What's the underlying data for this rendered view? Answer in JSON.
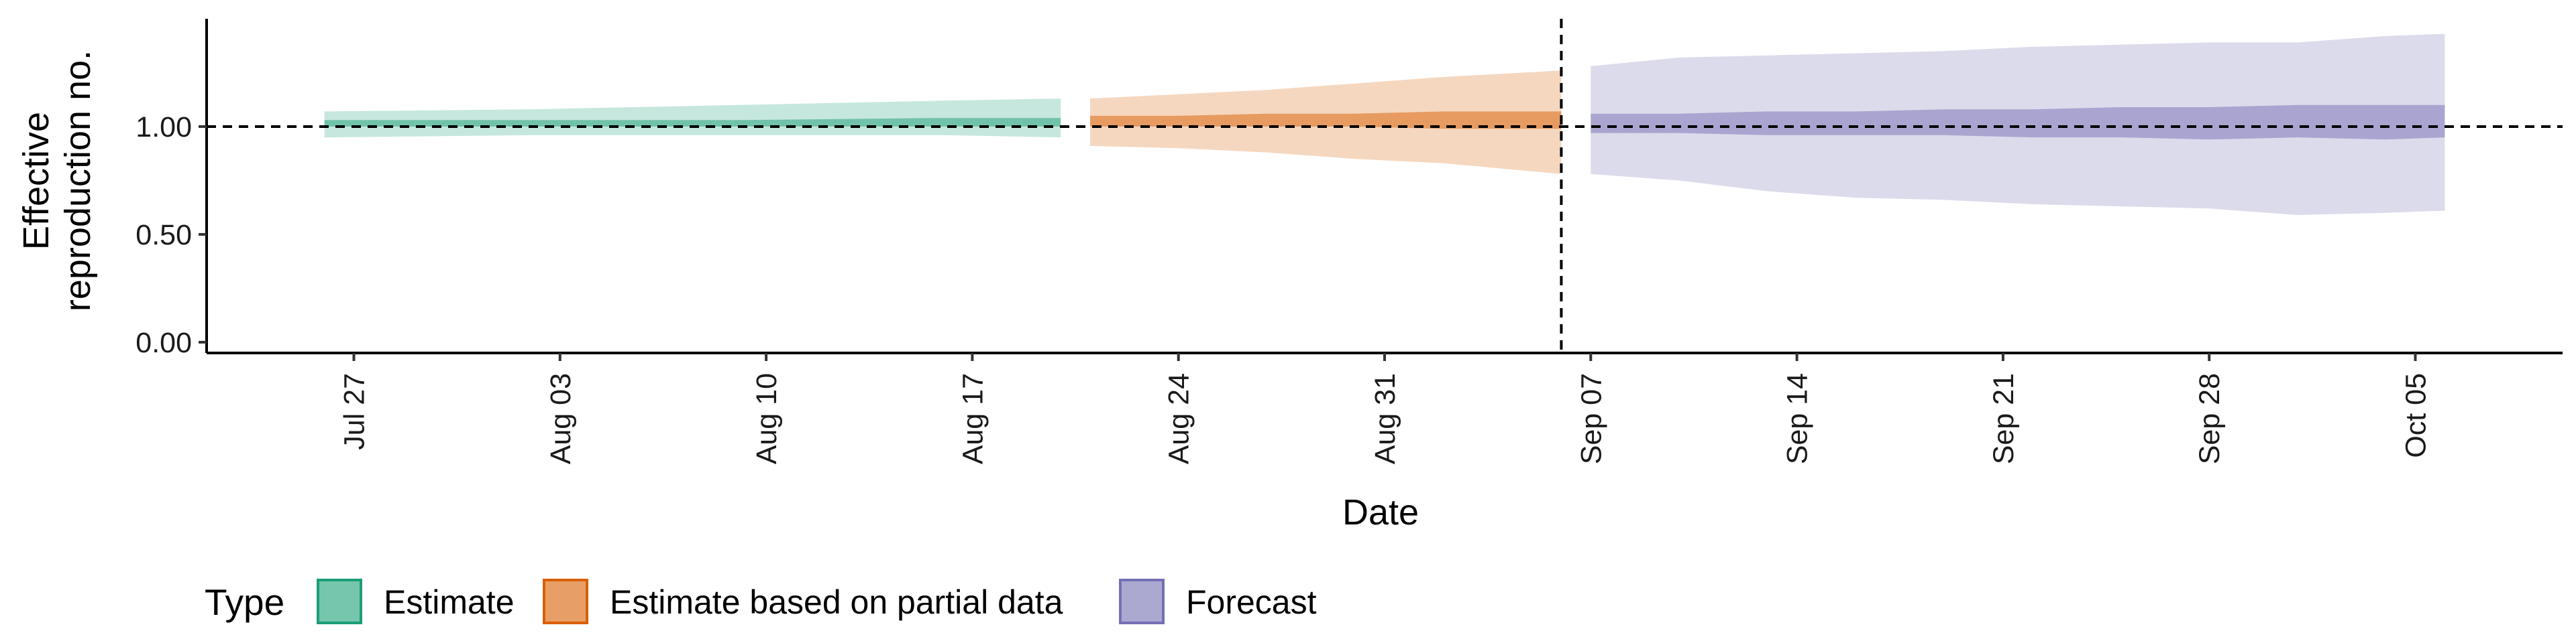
{
  "chart_data": {
    "type": "area",
    "title": "",
    "xlabel": "Date",
    "ylabel": [
      "Effective",
      "reproduction no."
    ],
    "ylim": [
      -0.05,
      1.5
    ],
    "xlim": [
      "2020-07-22",
      "2020-10-10"
    ],
    "yticks": [
      0.0,
      0.5,
      1.0
    ],
    "ytick_labels": [
      "0.00",
      "0.50",
      "1.00"
    ],
    "xticks": [
      "2020-07-27",
      "2020-08-03",
      "2020-08-10",
      "2020-08-17",
      "2020-08-24",
      "2020-08-31",
      "2020-09-07",
      "2020-09-14",
      "2020-09-21",
      "2020-09-28",
      "2020-10-05"
    ],
    "xtick_labels": [
      "Jul 27",
      "Aug 03",
      "Aug 10",
      "Aug 17",
      "Aug 24",
      "Aug 31",
      "Sep 07",
      "Sep 14",
      "Sep 21",
      "Sep 28",
      "Oct 05"
    ],
    "reference_line_y": 1.0,
    "reference_line_date": "2020-09-06",
    "legend": {
      "title": "Type",
      "position": "bottom"
    },
    "series": [
      {
        "name": "Estimate",
        "color": "#1b9e77",
        "dates": [
          "2020-07-26",
          "2020-08-02",
          "2020-08-09",
          "2020-08-16",
          "2020-08-20"
        ],
        "outer_lower": [
          0.95,
          0.96,
          0.96,
          0.96,
          0.95
        ],
        "outer_upper": [
          1.07,
          1.08,
          1.1,
          1.12,
          1.13
        ],
        "inner_lower": [
          1.0,
          1.0,
          1.0,
          1.0,
          1.0
        ],
        "inner_upper": [
          1.03,
          1.03,
          1.03,
          1.04,
          1.04
        ]
      },
      {
        "name": "Estimate based on partial data",
        "color": "#d95f02",
        "dates": [
          "2020-08-21",
          "2020-08-24",
          "2020-08-27",
          "2020-08-30",
          "2020-09-02",
          "2020-09-06"
        ],
        "outer_lower": [
          0.91,
          0.9,
          0.88,
          0.85,
          0.83,
          0.78
        ],
        "outer_upper": [
          1.13,
          1.15,
          1.17,
          1.2,
          1.23,
          1.26
        ],
        "inner_lower": [
          1.0,
          1.0,
          1.0,
          1.0,
          0.99,
          0.99
        ],
        "inner_upper": [
          1.05,
          1.05,
          1.06,
          1.06,
          1.07,
          1.07
        ]
      },
      {
        "name": "Forecast",
        "color": "#7570b3",
        "dates": [
          "2020-09-07",
          "2020-09-10",
          "2020-09-13",
          "2020-09-16",
          "2020-09-19",
          "2020-09-22",
          "2020-09-25",
          "2020-09-28",
          "2020-10-01",
          "2020-10-04",
          "2020-10-06"
        ],
        "outer_lower": [
          0.78,
          0.75,
          0.7,
          0.67,
          0.66,
          0.64,
          0.63,
          0.62,
          0.59,
          0.6,
          0.61
        ],
        "outer_upper": [
          1.28,
          1.32,
          1.33,
          1.34,
          1.35,
          1.37,
          1.38,
          1.39,
          1.39,
          1.42,
          1.43
        ],
        "inner_lower": [
          0.97,
          0.97,
          0.96,
          0.96,
          0.96,
          0.95,
          0.95,
          0.94,
          0.95,
          0.94,
          0.95
        ],
        "inner_upper": [
          1.06,
          1.06,
          1.07,
          1.07,
          1.08,
          1.08,
          1.09,
          1.09,
          1.1,
          1.1,
          1.1
        ]
      }
    ]
  }
}
